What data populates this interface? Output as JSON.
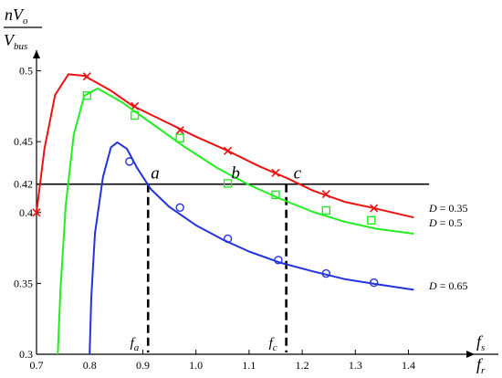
{
  "chart_data": {
    "type": "line",
    "title": "",
    "ylabel": {
      "num_pre": "n",
      "num_v": "V",
      "num_sub": "o",
      "den_v": "V",
      "den_sub": "bus"
    },
    "xlabel": {
      "num_f": "f",
      "num_sub": "s",
      "den_f": "f",
      "den_sub": "r"
    },
    "xlim": [
      0.7,
      1.43
    ],
    "ylim": [
      0.3,
      0.51
    ],
    "x_ticks": [
      0.7,
      0.8,
      0.9,
      1.0,
      1.1,
      1.2,
      1.3,
      1.4
    ],
    "x_tick_labels": [
      "0.7",
      "0.8",
      "0.9",
      "1.0",
      "1.1",
      "1.2",
      "1.3",
      "1.4"
    ],
    "y_ticks": [
      0.3,
      0.35,
      0.4,
      0.42,
      0.45,
      0.5
    ],
    "y_tick_labels": [
      "0.3",
      "0.35",
      "0.4",
      "0.42",
      "0.45",
      "0.5"
    ],
    "reference_line": {
      "y": 0.42
    },
    "series": [
      {
        "name": "D = 0.35",
        "label_parts": [
          "D",
          " = 0.35"
        ],
        "color": "#ee1111",
        "marker": "x",
        "points": [
          [
            0.7,
            0.4
          ],
          [
            0.715,
            0.445
          ],
          [
            0.735,
            0.483
          ],
          [
            0.76,
            0.4975
          ],
          [
            0.79,
            0.4965
          ],
          [
            0.84,
            0.486
          ],
          [
            0.88,
            0.4755
          ],
          [
            0.94,
            0.4645
          ],
          [
            1.0,
            0.4535
          ],
          [
            1.06,
            0.4435
          ],
          [
            1.12,
            0.4325
          ],
          [
            1.17,
            0.4245
          ],
          [
            1.22,
            0.4155
          ],
          [
            1.28,
            0.4075
          ],
          [
            1.33,
            0.4035
          ],
          [
            1.41,
            0.3965
          ]
        ],
        "markers": [
          [
            0.7,
            0.4
          ],
          [
            0.795,
            0.496
          ],
          [
            0.885,
            0.475
          ],
          [
            0.97,
            0.458
          ],
          [
            1.06,
            0.4435
          ],
          [
            1.15,
            0.428
          ],
          [
            1.245,
            0.413
          ],
          [
            1.335,
            0.403
          ]
        ]
      },
      {
        "name": "D = 0.5",
        "label_parts": [
          "D",
          " = 0.5"
        ],
        "color": "#22ee22",
        "marker": "square",
        "points": [
          [
            0.74,
            0.3
          ],
          [
            0.745,
            0.345
          ],
          [
            0.755,
            0.405
          ],
          [
            0.77,
            0.455
          ],
          [
            0.79,
            0.4825
          ],
          [
            0.815,
            0.4875
          ],
          [
            0.86,
            0.478
          ],
          [
            0.92,
            0.462
          ],
          [
            0.98,
            0.446
          ],
          [
            1.04,
            0.4315
          ],
          [
            1.1,
            0.4195
          ],
          [
            1.16,
            0.4095
          ],
          [
            1.22,
            0.4005
          ],
          [
            1.28,
            0.3935
          ],
          [
            1.34,
            0.3885
          ],
          [
            1.41,
            0.385
          ]
        ],
        "markers": [
          [
            0.795,
            0.4825
          ],
          [
            0.885,
            0.4685
          ],
          [
            0.97,
            0.4525
          ],
          [
            1.06,
            0.4205
          ],
          [
            1.15,
            0.4125
          ],
          [
            1.245,
            0.4015
          ],
          [
            1.33,
            0.3945
          ]
        ]
      },
      {
        "name": "D = 0.65",
        "label_parts": [
          "D",
          " = 0.65"
        ],
        "color": "#2233dd",
        "marker": "circle",
        "points": [
          [
            0.8,
            0.3
          ],
          [
            0.803,
            0.34
          ],
          [
            0.81,
            0.385
          ],
          [
            0.825,
            0.425
          ],
          [
            0.84,
            0.446
          ],
          [
            0.852,
            0.4495
          ],
          [
            0.87,
            0.445
          ],
          [
            0.89,
            0.431
          ],
          [
            0.915,
            0.4165
          ],
          [
            0.95,
            0.404
          ],
          [
            1.0,
            0.391
          ],
          [
            1.05,
            0.381
          ],
          [
            1.1,
            0.3725
          ],
          [
            1.16,
            0.3645
          ],
          [
            1.22,
            0.3585
          ],
          [
            1.28,
            0.353
          ],
          [
            1.34,
            0.3495
          ],
          [
            1.41,
            0.3455
          ]
        ],
        "markers": [
          [
            0.875,
            0.436
          ],
          [
            0.97,
            0.4035
          ],
          [
            1.06,
            0.3815
          ],
          [
            1.155,
            0.3665
          ],
          [
            1.245,
            0.357
          ],
          [
            1.335,
            0.3505
          ]
        ]
      }
    ],
    "points_of_interest": [
      {
        "label": "a",
        "x": 0.91,
        "y": 0.42
      },
      {
        "label": "b",
        "x": 1.07,
        "y": 0.42
      },
      {
        "label": "c",
        "x": 1.17,
        "y": 0.42
      }
    ],
    "frequency_markers": [
      {
        "label": "f",
        "sub": "a",
        "x": 0.91
      },
      {
        "label": "f",
        "sub": "c",
        "x": 1.17
      }
    ]
  }
}
